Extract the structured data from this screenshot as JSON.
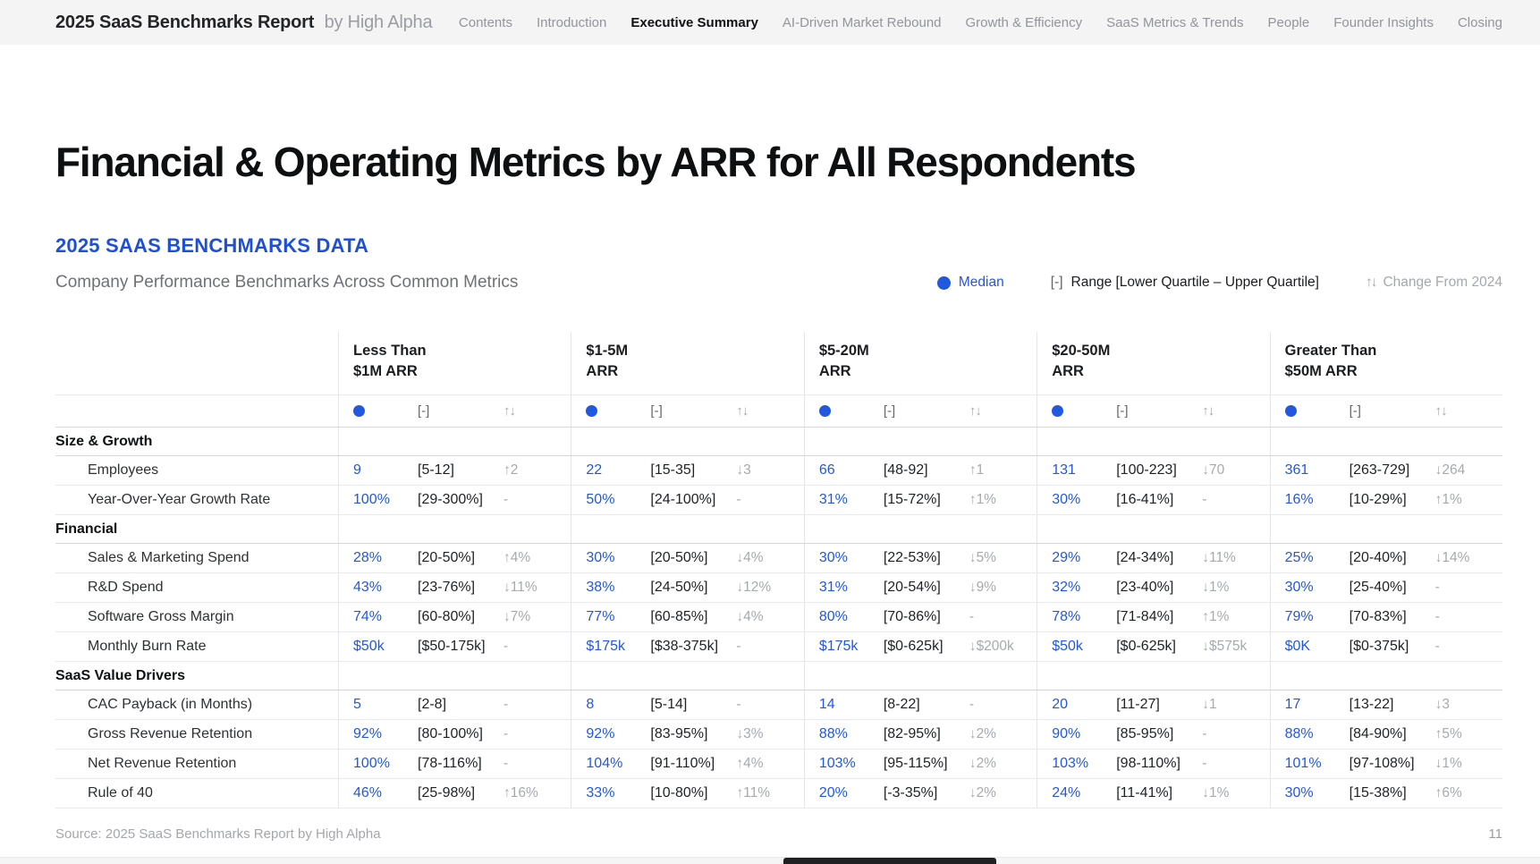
{
  "colors": {
    "accent_blue": "#1d4fdb",
    "median_blue": "#2257e0",
    "change_gray": "#a6aaaf"
  },
  "header": {
    "brand_title": "2025 SaaS Benchmarks Report",
    "brand_suffix": "by High Alpha",
    "nav": [
      {
        "label": "Contents",
        "active": false
      },
      {
        "label": "Introduction",
        "active": false
      },
      {
        "label": "Executive Summary",
        "active": true
      },
      {
        "label": "AI-Driven Market Rebound",
        "active": false
      },
      {
        "label": "Growth & Efficiency",
        "active": false
      },
      {
        "label": "SaaS Metrics & Trends",
        "active": false
      },
      {
        "label": "People",
        "active": false
      },
      {
        "label": "Founder Insights",
        "active": false
      },
      {
        "label": "Closing",
        "active": false
      }
    ]
  },
  "page": {
    "title": "Financial & Operating Metrics by ARR for All Respondents",
    "section_label": "2025 SAAS BENCHMARKS DATA",
    "subtitle": "Company Performance Benchmarks Across Common Metrics"
  },
  "legend": {
    "median_label": "Median",
    "range_icon": "[-]",
    "range_label": "Range [Lower Quartile – Upper Quartile]",
    "change_icon": "↑↓",
    "change_label": "Change From 2024"
  },
  "table": {
    "column_groups": [
      "Less Than\n$1M ARR",
      "$1-5M\nARR",
      "$5-20M\nARR",
      "$20-50M\nARR",
      "Greater Than\n$50M ARR"
    ],
    "subheader": {
      "median_dot": "●",
      "range": "[-]",
      "change": "↑↓"
    },
    "sections": [
      {
        "name": "Size & Growth",
        "rows": [
          {
            "metric": "Employees",
            "cells": [
              {
                "median": "9",
                "range": "[5-12]",
                "change": "↑2"
              },
              {
                "median": "22",
                "range": "[15-35]",
                "change": "↓3"
              },
              {
                "median": "66",
                "range": "[48-92]",
                "change": "↑1"
              },
              {
                "median": "131",
                "range": "[100-223]",
                "change": "↓70"
              },
              {
                "median": "361",
                "range": "[263-729]",
                "change": "↓264"
              }
            ]
          },
          {
            "metric": "Year-Over-Year Growth Rate",
            "cells": [
              {
                "median": "100%",
                "range": "[29-300%]",
                "change": "-"
              },
              {
                "median": "50%",
                "range": "[24-100%]",
                "change": "-"
              },
              {
                "median": "31%",
                "range": "[15-72%]",
                "change": "↑1%"
              },
              {
                "median": "30%",
                "range": "[16-41%]",
                "change": "-"
              },
              {
                "median": "16%",
                "range": "[10-29%]",
                "change": "↑1%"
              }
            ]
          }
        ]
      },
      {
        "name": "Financial",
        "rows": [
          {
            "metric": "Sales & Marketing Spend",
            "cells": [
              {
                "median": "28%",
                "range": "[20-50%]",
                "change": "↑4%"
              },
              {
                "median": "30%",
                "range": "[20-50%]",
                "change": "↓4%"
              },
              {
                "median": "30%",
                "range": "[22-53%]",
                "change": "↓5%"
              },
              {
                "median": "29%",
                "range": "[24-34%]",
                "change": "↓11%"
              },
              {
                "median": "25%",
                "range": "[20-40%]",
                "change": "↓14%"
              }
            ]
          },
          {
            "metric": "R&D Spend",
            "cells": [
              {
                "median": "43%",
                "range": "[23-76%]",
                "change": "↓11%"
              },
              {
                "median": "38%",
                "range": "[24-50%]",
                "change": "↓12%"
              },
              {
                "median": "31%",
                "range": "[20-54%]",
                "change": "↓9%"
              },
              {
                "median": "32%",
                "range": "[23-40%]",
                "change": "↓1%"
              },
              {
                "median": "30%",
                "range": "[25-40%]",
                "change": "-"
              }
            ]
          },
          {
            "metric": "Software Gross Margin",
            "cells": [
              {
                "median": "74%",
                "range": "[60-80%]",
                "change": "↓7%"
              },
              {
                "median": "77%",
                "range": "[60-85%]",
                "change": "↓4%"
              },
              {
                "median": "80%",
                "range": "[70-86%]",
                "change": "-"
              },
              {
                "median": "78%",
                "range": "[71-84%]",
                "change": "↑1%"
              },
              {
                "median": "79%",
                "range": "[70-83%]",
                "change": "-"
              }
            ]
          },
          {
            "metric": "Monthly Burn Rate",
            "cells": [
              {
                "median": "$50k",
                "range": "[$50-175k]",
                "change": "-"
              },
              {
                "median": "$175k",
                "range": "[$38-375k]",
                "change": "-"
              },
              {
                "median": "$175k",
                "range": "[$0-625k]",
                "change": "↓$200k"
              },
              {
                "median": "$50k",
                "range": "[$0-625k]",
                "change": "↓$575k"
              },
              {
                "median": "$0K",
                "range": "[$0-375k]",
                "change": "-"
              }
            ]
          }
        ]
      },
      {
        "name": "SaaS Value Drivers",
        "rows": [
          {
            "metric": "CAC Payback (in Months)",
            "cells": [
              {
                "median": "5",
                "range": "[2-8]",
                "change": "-"
              },
              {
                "median": "8",
                "range": "[5-14]",
                "change": "-"
              },
              {
                "median": "14",
                "range": "[8-22]",
                "change": "-"
              },
              {
                "median": "20",
                "range": "[11-27]",
                "change": "↓1"
              },
              {
                "median": "17",
                "range": "[13-22]",
                "change": "↓3"
              }
            ]
          },
          {
            "metric": "Gross Revenue Retention",
            "cells": [
              {
                "median": "92%",
                "range": "[80-100%]",
                "change": "-"
              },
              {
                "median": "92%",
                "range": "[83-95%]",
                "change": "↓3%"
              },
              {
                "median": "88%",
                "range": "[82-95%]",
                "change": "↓2%"
              },
              {
                "median": "90%",
                "range": "[85-95%]",
                "change": "-"
              },
              {
                "median": "88%",
                "range": "[84-90%]",
                "change": "↑5%"
              }
            ]
          },
          {
            "metric": "Net Revenue Retention",
            "cells": [
              {
                "median": "100%",
                "range": "[78-116%]",
                "change": "-"
              },
              {
                "median": "104%",
                "range": "[91-110%]",
                "change": "↑4%"
              },
              {
                "median": "103%",
                "range": "[95-115%]",
                "change": "↓2%"
              },
              {
                "median": "103%",
                "range": "[98-110%]",
                "change": "-"
              },
              {
                "median": "101%",
                "range": "[97-108%]",
                "change": "↓1%"
              }
            ]
          },
          {
            "metric": "Rule of 40",
            "cells": [
              {
                "median": "46%",
                "range": "[25-98%]",
                "change": "↑16%"
              },
              {
                "median": "33%",
                "range": "[10-80%]",
                "change": "↑11%"
              },
              {
                "median": "20%",
                "range": "[-3-35%]",
                "change": "↓2%"
              },
              {
                "median": "24%",
                "range": "[11-41%]",
                "change": "↓1%"
              },
              {
                "median": "30%",
                "range": "[15-38%]",
                "change": "↑6%"
              }
            ]
          }
        ]
      }
    ]
  },
  "footer": {
    "source": "Source: 2025 SaaS Benchmarks Report by High Alpha",
    "page_number": "11"
  }
}
